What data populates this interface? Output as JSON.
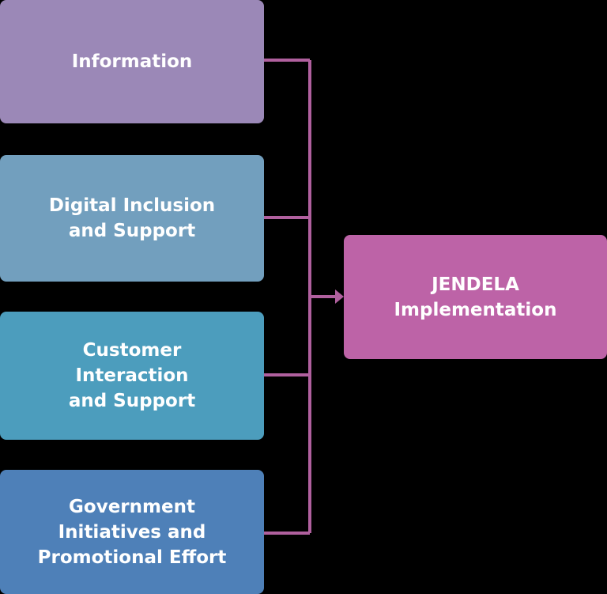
{
  "diagram": {
    "sources": [
      {
        "label": "Information",
        "color": "#9b88b7"
      },
      {
        "label": "Digital Inclusion\nand Support",
        "color": "#729fbe"
      },
      {
        "label": "Customer\nInteraction\nand Support",
        "color": "#4c9dbd"
      },
      {
        "label": "Government\nInitiatives and\nPromotional Effort",
        "color": "#4e80b8"
      }
    ],
    "target": {
      "label": "JENDELA\nImplementation",
      "color": "#bd63a7"
    },
    "connector_color": "#b0609e"
  }
}
